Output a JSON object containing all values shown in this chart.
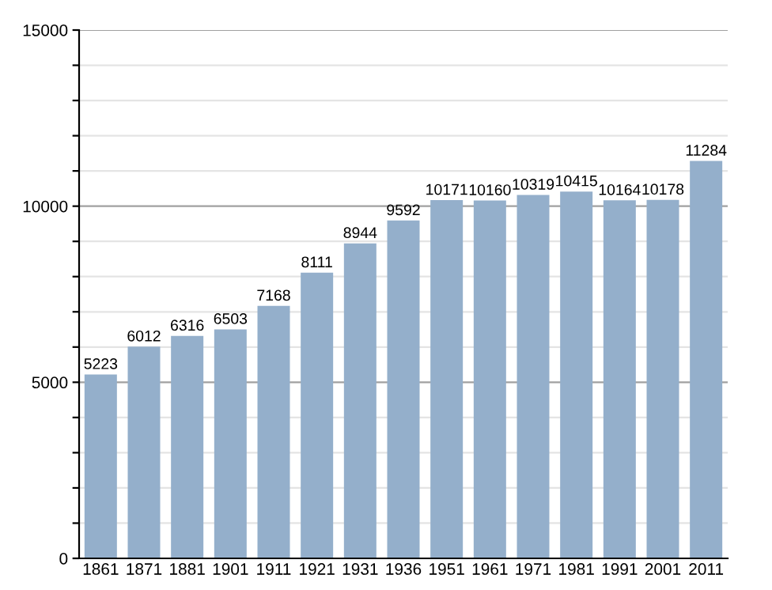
{
  "chart_data": {
    "type": "bar",
    "categories": [
      "1861",
      "1871",
      "1881",
      "1901",
      "1911",
      "1921",
      "1931",
      "1936",
      "1951",
      "1961",
      "1971",
      "1981",
      "1991",
      "2001",
      "2011"
    ],
    "values": [
      5223,
      6012,
      6316,
      6503,
      7168,
      8111,
      8944,
      9592,
      10171,
      10160,
      10319,
      10415,
      10164,
      10178,
      11284
    ],
    "color": "#94afcb",
    "ylim": [
      0,
      15000
    ],
    "yticks": [
      0,
      {
        "value": 1000,
        "label": null
      },
      {
        "value": 2000,
        "label": null
      },
      {
        "value": 3000,
        "label": null
      },
      {
        "value": 4000,
        "label": null
      },
      5000,
      {
        "value": 6000,
        "label": null
      },
      {
        "value": 7000,
        "label": null
      },
      {
        "value": 8000,
        "label": null
      },
      {
        "value": 9000,
        "label": null
      },
      10000,
      {
        "value": 11000,
        "label": null
      },
      {
        "value": 12000,
        "label": null
      },
      {
        "value": 13000,
        "label": null
      },
      {
        "value": 14000,
        "label": null
      },
      15000
    ],
    "grid": "y",
    "data_labels": true
  }
}
